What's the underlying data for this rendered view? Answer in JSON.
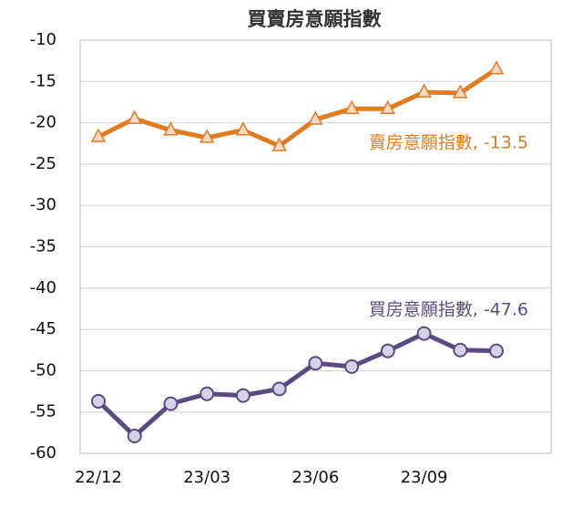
{
  "chart_data": {
    "type": "line",
    "title": "買賣房意願指數",
    "categories": [
      "22/12",
      null,
      null,
      "23/03",
      null,
      null,
      "23/06",
      null,
      null,
      "23/09",
      null,
      null
    ],
    "series": [
      {
        "name": "賣房意願指數",
        "label": "賣房意願指數, -13.5",
        "color": "#e07b22",
        "marker": "triangle",
        "values": [
          -21.7,
          -19.5,
          -20.9,
          -21.8,
          -20.9,
          -22.8,
          -19.6,
          -18.3,
          -18.3,
          -16.3,
          -16.4,
          -13.5
        ]
      },
      {
        "name": "買房意願指數",
        "label": "買房意願指數, -47.6",
        "color": "#5b4a80",
        "marker": "circle",
        "values": [
          -53.7,
          -57.9,
          -54.0,
          -52.8,
          -53.0,
          -52.2,
          -49.1,
          -49.5,
          -47.6,
          -45.5,
          -47.5,
          -47.6
        ]
      }
    ],
    "ylim": [
      -60,
      -10
    ],
    "yticks": [
      -60,
      -55,
      -50,
      -45,
      -40,
      -35,
      -30,
      -25,
      -20,
      -15,
      -10
    ],
    "grid": true
  }
}
